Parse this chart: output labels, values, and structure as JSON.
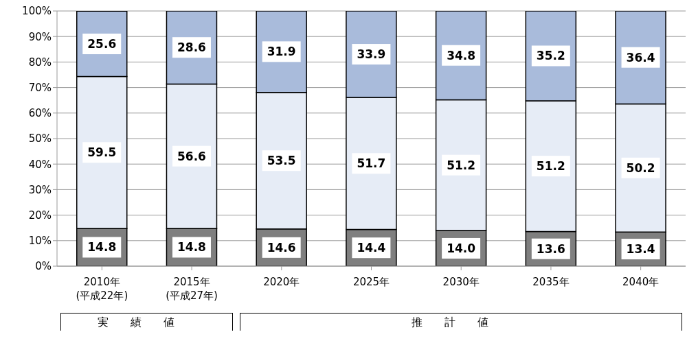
{
  "chart_data": {
    "type": "bar",
    "stacked": true,
    "categories": [
      "2010年\n(平成22年)",
      "2015年\n(平成27年)",
      "2020年",
      "2025年",
      "2030年",
      "2035年",
      "2040年"
    ],
    "series": [
      {
        "color": "#7f7f7f",
        "values": [
          14.8,
          14.8,
          14.6,
          14.4,
          14.0,
          13.6,
          13.4
        ],
        "value_labels": [
          "14.8",
          "14.8",
          "14.6",
          "14.4",
          "14.0",
          "13.6",
          "13.4"
        ]
      },
      {
        "color": "#e6ecf6",
        "values": [
          59.5,
          56.6,
          53.5,
          51.7,
          51.2,
          51.2,
          50.2
        ],
        "value_labels": [
          "59.5",
          "56.6",
          "53.5",
          "51.7",
          "51.2",
          "51.2",
          "50.2"
        ]
      },
      {
        "color": "#a9bbdb",
        "values": [
          25.6,
          28.6,
          31.9,
          33.9,
          34.8,
          35.2,
          36.4
        ],
        "value_labels": [
          "25.6",
          "28.6",
          "31.9",
          "33.9",
          "34.8",
          "35.2",
          "36.4"
        ]
      }
    ],
    "ylim": [
      0,
      100
    ],
    "yticks": [
      {
        "value": 0,
        "label": "0%"
      },
      {
        "value": 10,
        "label": "10%"
      },
      {
        "value": 20,
        "label": "20%"
      },
      {
        "value": 30,
        "label": "30%"
      },
      {
        "value": 40,
        "label": "40%"
      },
      {
        "value": 50,
        "label": "50%"
      },
      {
        "value": 60,
        "label": "60%"
      },
      {
        "value": 70,
        "label": "70%"
      },
      {
        "value": 80,
        "label": "80%"
      },
      {
        "value": 90,
        "label": "90%"
      },
      {
        "value": 100,
        "label": "100%"
      }
    ],
    "grid": "y",
    "legend": false,
    "annotations": [
      "実績値",
      "推計値"
    ]
  }
}
